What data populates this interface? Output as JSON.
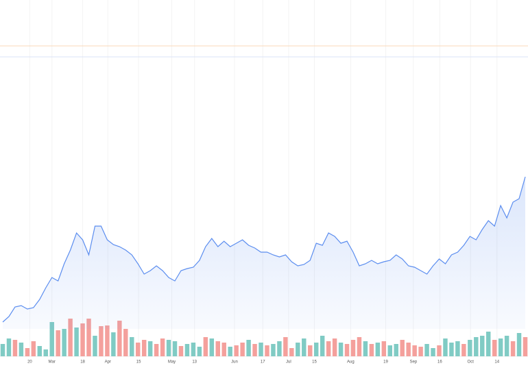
{
  "chart_data": {
    "type": "line",
    "x": [
      0,
      1,
      2,
      3,
      4,
      5,
      6,
      7,
      8,
      9,
      10,
      11,
      12,
      13,
      14,
      15,
      16,
      17,
      18,
      19,
      20,
      21,
      22,
      23,
      24,
      25,
      26,
      27,
      28,
      29,
      30,
      31,
      32,
      33,
      34,
      35,
      36,
      37,
      38,
      39,
      40,
      41,
      42,
      43,
      44,
      45,
      46,
      47,
      48,
      49,
      50,
      51,
      52,
      53,
      54,
      55,
      56,
      57,
      58,
      59,
      60,
      61,
      62,
      63,
      64,
      65,
      66,
      67,
      68,
      69,
      70,
      71,
      72,
      73,
      74,
      75,
      76,
      77,
      78,
      79,
      80,
      81,
      82,
      83,
      84,
      85
    ],
    "xlim": [
      0,
      85
    ],
    "xticks": [
      {
        "value": 4.4,
        "label": "20"
      },
      {
        "value": 8,
        "label": "Mar"
      },
      {
        "value": 13,
        "label": "18"
      },
      {
        "value": 17.1,
        "label": "Apr"
      },
      {
        "value": 22.1,
        "label": "15"
      },
      {
        "value": 27.5,
        "label": "May"
      },
      {
        "value": 31.2,
        "label": "13"
      },
      {
        "value": 37.7,
        "label": "Jun"
      },
      {
        "value": 42.3,
        "label": "17"
      },
      {
        "value": 46.5,
        "label": "Jul"
      },
      {
        "value": 50.7,
        "label": "15"
      },
      {
        "value": 56.6,
        "label": "Aug"
      },
      {
        "value": 62.3,
        "label": "19"
      },
      {
        "value": 66.8,
        "label": "Sep"
      },
      {
        "value": 71.1,
        "label": "16"
      },
      {
        "value": 76.1,
        "label": "Oct"
      },
      {
        "value": 80.4,
        "label": "14"
      }
    ],
    "ylim": [
      0,
      480
    ],
    "y2lim": [
      0,
      80
    ],
    "series": [
      {
        "color": "#5b8def",
        "values": [
          10,
          18,
          32,
          34,
          29,
          31,
          43,
          60,
          75,
          70,
          95,
          115,
          140,
          130,
          108,
          150,
          150,
          130,
          123,
          120,
          115,
          108,
          95,
          80,
          85,
          92,
          85,
          75,
          70,
          85,
          88,
          90,
          100,
          120,
          132,
          120,
          128,
          120,
          125,
          130,
          122,
          118,
          112,
          112,
          108,
          105,
          108,
          98,
          92,
          94,
          100,
          125,
          122,
          140,
          135,
          125,
          128,
          112,
          92,
          95,
          100,
          95,
          98,
          100,
          108,
          102,
          92,
          90,
          85,
          80,
          92,
          102,
          95,
          108,
          112,
          122,
          135,
          130,
          145,
          158,
          150,
          180,
          162,
          185,
          190,
          222
        ]
      },
      {
        "axis": "y2",
        "values": [
          18,
          26,
          24,
          20,
          12,
          22,
          15,
          10,
          50,
          38,
          40,
          55,
          42,
          48,
          55,
          30,
          44,
          45,
          35,
          52,
          40,
          28,
          20,
          24,
          22,
          18,
          26,
          24,
          22,
          15,
          18,
          20,
          14,
          28,
          26,
          22,
          20,
          14,
          16,
          20,
          24,
          18,
          20,
          16,
          18,
          22,
          28,
          12,
          20,
          26,
          16,
          20,
          30,
          22,
          26,
          20,
          18,
          24,
          28,
          22,
          18,
          20,
          22,
          16,
          18,
          24,
          20,
          16,
          14,
          18,
          12,
          16,
          26,
          20,
          22,
          18,
          24,
          28,
          30,
          36,
          24,
          26,
          30,
          22,
          34,
          28
        ],
        "colors": [
          "#80cbc4",
          "#80cbc4",
          "#f4a09c",
          "#80cbc4",
          "#f4a09c",
          "#f4a09c",
          "#80cbc4",
          "#80cbc4",
          "#80cbc4",
          "#f4a09c",
          "#80cbc4",
          "#f4a09c",
          "#80cbc4",
          "#f4a09c",
          "#f4a09c",
          "#80cbc4",
          "#f4a09c",
          "#f4a09c",
          "#80cbc4",
          "#f4a09c",
          "#f4a09c",
          "#80cbc4",
          "#f4a09c",
          "#f4a09c",
          "#80cbc4",
          "#f4a09c",
          "#f4a09c",
          "#80cbc4",
          "#80cbc4",
          "#f4a09c",
          "#80cbc4",
          "#80cbc4",
          "#80cbc4",
          "#f4a09c",
          "#80cbc4",
          "#f4a09c",
          "#f4a09c",
          "#80cbc4",
          "#f4a09c",
          "#f4a09c",
          "#80cbc4",
          "#f4a09c",
          "#80cbc4",
          "#f4a09c",
          "#80cbc4",
          "#80cbc4",
          "#f4a09c",
          "#f4a09c",
          "#80cbc4",
          "#80cbc4",
          "#f4a09c",
          "#80cbc4",
          "#80cbc4",
          "#f4a09c",
          "#f4a09c",
          "#80cbc4",
          "#f4a09c",
          "#f4a09c",
          "#f4a09c",
          "#80cbc4",
          "#f4a09c",
          "#80cbc4",
          "#f4a09c",
          "#80cbc4",
          "#80cbc4",
          "#f4a09c",
          "#f4a09c",
          "#f4a09c",
          "#f4a09c",
          "#80cbc4",
          "#80cbc4",
          "#f4a09c",
          "#80cbc4",
          "#80cbc4",
          "#80cbc4",
          "#f4a09c",
          "#80cbc4",
          "#80cbc4",
          "#80cbc4",
          "#80cbc4",
          "#f4a09c",
          "#80cbc4",
          "#80cbc4",
          "#f4a09c",
          "#80cbc4",
          "#f4a09c"
        ]
      }
    ],
    "grid": true
  }
}
